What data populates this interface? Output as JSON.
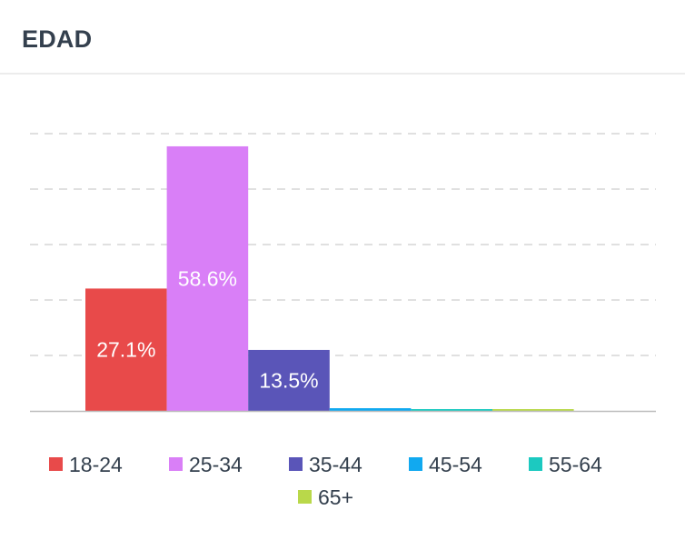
{
  "header": {
    "title": "EDAD"
  },
  "chart_data": {
    "type": "bar",
    "title": "",
    "xlabel": "",
    "ylabel": "",
    "ylim": [
      0,
      60
    ],
    "grid": true,
    "legend_position": "bottom",
    "show_data_labels": true,
    "categories": [
      "18-24",
      "25-34",
      "35-44",
      "45-54",
      "55-64",
      "65+"
    ],
    "values": [
      27.1,
      58.6,
      13.5,
      0.6,
      0.3,
      0.3
    ],
    "labels": [
      "27.1%",
      "58.6%",
      "13.5%",
      "",
      "",
      ""
    ],
    "colors": [
      "#e84a4a",
      "#d97ff7",
      "#5a55b8",
      "#11a9f0",
      "#1cc9c0",
      "#b9d84a"
    ]
  }
}
